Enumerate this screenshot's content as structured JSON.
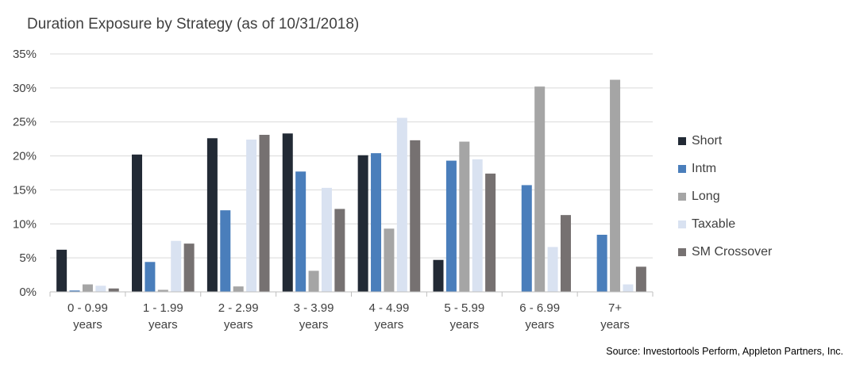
{
  "chart_data": {
    "type": "bar",
    "title": "Duration Exposure by Strategy (as of 10/31/2018)",
    "source": "Source: Investortools Perform, Appleton Partners, Inc.",
    "categories": [
      [
        "0 - 0.99",
        "years"
      ],
      [
        "1 - 1.99",
        "years"
      ],
      [
        "2 - 2.99",
        "years"
      ],
      [
        "3 - 3.99",
        "years"
      ],
      [
        "4 - 4.99",
        "years"
      ],
      [
        "5 - 5.99",
        "years"
      ],
      [
        "6 - 6.99",
        "years"
      ],
      [
        "7+",
        "years"
      ]
    ],
    "series": [
      {
        "name": "Short",
        "color": "#222a35",
        "values": [
          6.2,
          20.2,
          22.6,
          23.3,
          20.1,
          4.7,
          0,
          0
        ]
      },
      {
        "name": "Intm",
        "color": "#4a7ebb",
        "values": [
          0.2,
          4.4,
          12.0,
          17.7,
          20.4,
          19.3,
          15.7,
          8.4
        ]
      },
      {
        "name": "Long",
        "color": "#a5a5a5",
        "values": [
          1.1,
          0.3,
          0.8,
          3.1,
          9.3,
          22.1,
          30.2,
          31.2
        ]
      },
      {
        "name": "Taxable",
        "color": "#d9e2f1",
        "values": [
          0.9,
          7.5,
          22.4,
          15.3,
          25.6,
          19.5,
          6.6,
          1.1
        ]
      },
      {
        "name": "SM Crossover",
        "color": "#767171",
        "values": [
          0.5,
          7.1,
          23.1,
          12.2,
          22.3,
          17.4,
          11.3,
          3.7
        ]
      }
    ],
    "yticks": [
      "0%",
      "5%",
      "10%",
      "15%",
      "20%",
      "25%",
      "30%",
      "35%"
    ],
    "ylim": [
      0,
      35
    ],
    "xlabel": "",
    "ylabel": "",
    "grid": true,
    "legend_position": "right"
  }
}
